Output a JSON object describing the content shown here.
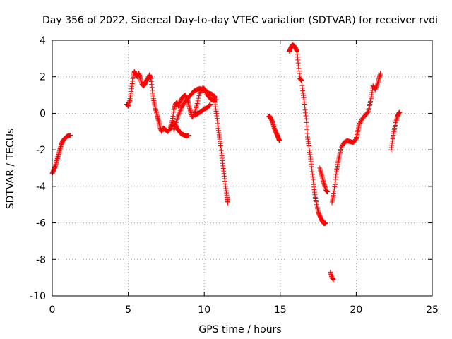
{
  "chart_data": {
    "type": "scatter",
    "title": "Day 356 of 2022, Sidereal Day-to-day VTEC variation (SDTVAR) for receiver rvdi",
    "xlabel": "GPS time / hours",
    "ylabel": "SDTVAR / TECUs",
    "xlim": [
      0,
      25
    ],
    "ylim": [
      -10,
      4
    ],
    "xticks": [
      0,
      5,
      10,
      15,
      20,
      25
    ],
    "yticks": [
      -10,
      -8,
      -6,
      -4,
      -2,
      0,
      2,
      4
    ],
    "xtick_labels": [
      "0",
      "5",
      "10",
      "15",
      "20",
      "25"
    ],
    "ytick_labels": [
      "-10",
      "-8",
      "-6",
      "-4",
      "-2",
      "0",
      "2",
      "4"
    ],
    "grid": true,
    "marker": "+",
    "series": [
      {
        "name": "SDTVAR",
        "color": "#ff0000",
        "segments": [
          [
            [
              0.0,
              -3.3
            ],
            [
              0.1,
              -3.1
            ],
            [
              0.2,
              -2.9
            ],
            [
              0.3,
              -2.6
            ],
            [
              0.4,
              -2.3
            ],
            [
              0.5,
              -2.0
            ],
            [
              0.6,
              -1.7
            ],
            [
              0.7,
              -1.5
            ],
            [
              0.85,
              -1.35
            ],
            [
              1.0,
              -1.25
            ],
            [
              1.2,
              -1.2
            ]
          ],
          [
            [
              4.9,
              0.5
            ],
            [
              5.0,
              0.4
            ],
            [
              5.1,
              0.7
            ],
            [
              5.2,
              1.2
            ],
            [
              5.3,
              1.9
            ],
            [
              5.4,
              2.3
            ],
            [
              5.5,
              2.1
            ],
            [
              5.6,
              2.0
            ],
            [
              5.7,
              2.2
            ],
            [
              5.8,
              1.9
            ],
            [
              5.9,
              1.6
            ],
            [
              6.0,
              1.5
            ],
            [
              6.1,
              1.6
            ],
            [
              6.2,
              1.8
            ],
            [
              6.3,
              1.9
            ],
            [
              6.4,
              2.1
            ],
            [
              6.5,
              1.9
            ],
            [
              6.6,
              1.1
            ],
            [
              6.7,
              0.6
            ],
            [
              6.8,
              0.2
            ],
            [
              6.9,
              -0.1
            ],
            [
              7.0,
              -0.4
            ],
            [
              7.1,
              -0.8
            ],
            [
              7.2,
              -1.0
            ],
            [
              7.3,
              -0.8
            ],
            [
              7.45,
              -0.9
            ],
            [
              7.6,
              -1.0
            ],
            [
              7.75,
              -0.85
            ],
            [
              7.9,
              -0.4
            ],
            [
              8.0,
              0.2
            ],
            [
              8.1,
              0.5
            ],
            [
              8.2,
              0.6
            ],
            [
              8.3,
              0.4
            ],
            [
              8.45,
              0.7
            ],
            [
              8.6,
              0.9
            ],
            [
              8.75,
              1.0
            ],
            [
              8.9,
              0.7
            ],
            [
              9.0,
              0.4
            ],
            [
              9.1,
              0.1
            ],
            [
              9.2,
              -0.2
            ],
            [
              9.35,
              -0.05
            ],
            [
              9.5,
              0.4
            ],
            [
              9.7,
              1.1
            ],
            [
              9.9,
              1.4
            ],
            [
              10.05,
              1.3
            ],
            [
              10.2,
              1.0
            ],
            [
              10.4,
              0.8
            ],
            [
              10.6,
              0.7
            ],
            [
              10.8,
              0.75
            ]
          ],
          [
            [
              7.8,
              -0.8
            ],
            [
              7.95,
              -0.5
            ],
            [
              8.1,
              -0.6
            ],
            [
              8.25,
              -0.85
            ],
            [
              8.4,
              -1.05
            ],
            [
              8.55,
              -1.15
            ],
            [
              8.7,
              -1.2
            ],
            [
              8.85,
              -1.25
            ],
            [
              9.0,
              -1.2
            ]
          ],
          [
            [
              8.0,
              -0.9
            ],
            [
              8.15,
              -0.5
            ],
            [
              8.3,
              -0.1
            ],
            [
              8.5,
              0.3
            ],
            [
              8.7,
              0.6
            ],
            [
              8.9,
              0.8
            ],
            [
              9.1,
              1.0
            ],
            [
              9.3,
              1.2
            ],
            [
              9.5,
              1.3
            ],
            [
              9.7,
              1.35
            ],
            [
              9.9,
              1.3
            ],
            [
              10.1,
              1.2
            ],
            [
              10.3,
              1.1
            ],
            [
              10.5,
              1.05
            ],
            [
              10.7,
              0.9
            ]
          ],
          [
            [
              9.4,
              -0.1
            ],
            [
              9.6,
              0.0
            ],
            [
              9.8,
              0.1
            ],
            [
              10.0,
              0.25
            ],
            [
              10.2,
              0.3
            ],
            [
              10.4,
              0.5
            ]
          ],
          [
            [
              10.7,
              0.6
            ],
            [
              10.8,
              0.0
            ],
            [
              10.9,
              -0.7
            ],
            [
              11.0,
              -1.3
            ],
            [
              11.1,
              -1.9
            ],
            [
              11.2,
              -2.6
            ],
            [
              11.3,
              -3.3
            ],
            [
              11.4,
              -4.0
            ],
            [
              11.5,
              -4.6
            ],
            [
              11.55,
              -4.9
            ]
          ],
          [
            [
              14.2,
              -0.2
            ],
            [
              14.3,
              -0.15
            ],
            [
              14.4,
              -0.3
            ],
            [
              14.5,
              -0.5
            ],
            [
              14.6,
              -0.8
            ],
            [
              14.7,
              -1.0
            ],
            [
              14.8,
              -1.2
            ],
            [
              14.9,
              -1.4
            ],
            [
              14.95,
              -1.5
            ]
          ],
          [
            [
              15.6,
              3.4
            ],
            [
              15.7,
              3.6
            ],
            [
              15.8,
              3.75
            ],
            [
              15.9,
              3.7
            ],
            [
              16.0,
              3.6
            ],
            [
              16.1,
              3.4
            ],
            [
              16.2,
              2.6
            ],
            [
              16.3,
              1.9
            ],
            [
              16.4,
              1.8
            ],
            [
              16.5,
              1.1
            ],
            [
              16.6,
              0.5
            ],
            [
              16.7,
              -0.3
            ],
            [
              16.8,
              -1.3
            ],
            [
              16.9,
              -1.9
            ],
            [
              17.0,
              -2.5
            ],
            [
              17.1,
              -3.2
            ],
            [
              17.2,
              -3.9
            ],
            [
              17.3,
              -4.6
            ],
            [
              17.4,
              -5.0
            ],
            [
              17.5,
              -5.4
            ],
            [
              17.6,
              -5.6
            ],
            [
              17.7,
              -5.8
            ],
            [
              17.8,
              -5.95
            ],
            [
              17.9,
              -6.05
            ],
            [
              18.0,
              -6.0
            ]
          ],
          [
            [
              17.6,
              -3.0
            ],
            [
              17.7,
              -3.3
            ],
            [
              17.8,
              -3.6
            ],
            [
              17.9,
              -3.9
            ],
            [
              18.0,
              -4.2
            ],
            [
              18.1,
              -4.3
            ]
          ],
          [
            [
              18.4,
              -4.9
            ],
            [
              18.5,
              -4.5
            ],
            [
              18.6,
              -3.9
            ],
            [
              18.7,
              -3.2
            ],
            [
              18.8,
              -2.7
            ],
            [
              18.9,
              -2.3
            ],
            [
              19.0,
              -1.9
            ],
            [
              19.2,
              -1.6
            ],
            [
              19.4,
              -1.5
            ],
            [
              19.6,
              -1.55
            ],
            [
              19.8,
              -1.6
            ],
            [
              20.0,
              -1.4
            ],
            [
              20.1,
              -1.0
            ],
            [
              20.2,
              -0.6
            ],
            [
              20.4,
              -0.3
            ],
            [
              20.6,
              -0.1
            ],
            [
              20.8,
              0.1
            ],
            [
              20.9,
              0.5
            ],
            [
              21.0,
              0.9
            ],
            [
              21.1,
              1.5
            ],
            [
              21.25,
              1.3
            ],
            [
              21.4,
              1.6
            ],
            [
              21.5,
              1.9
            ],
            [
              21.6,
              2.2
            ]
          ],
          [
            [
              18.3,
              -8.7
            ],
            [
              18.4,
              -9.0
            ],
            [
              18.5,
              -9.1
            ]
          ],
          [
            [
              22.3,
              -2.0
            ],
            [
              22.4,
              -1.4
            ],
            [
              22.5,
              -0.9
            ],
            [
              22.6,
              -0.5
            ],
            [
              22.7,
              -0.2
            ],
            [
              22.8,
              0.0
            ],
            [
              22.85,
              0.05
            ]
          ]
        ]
      }
    ]
  }
}
